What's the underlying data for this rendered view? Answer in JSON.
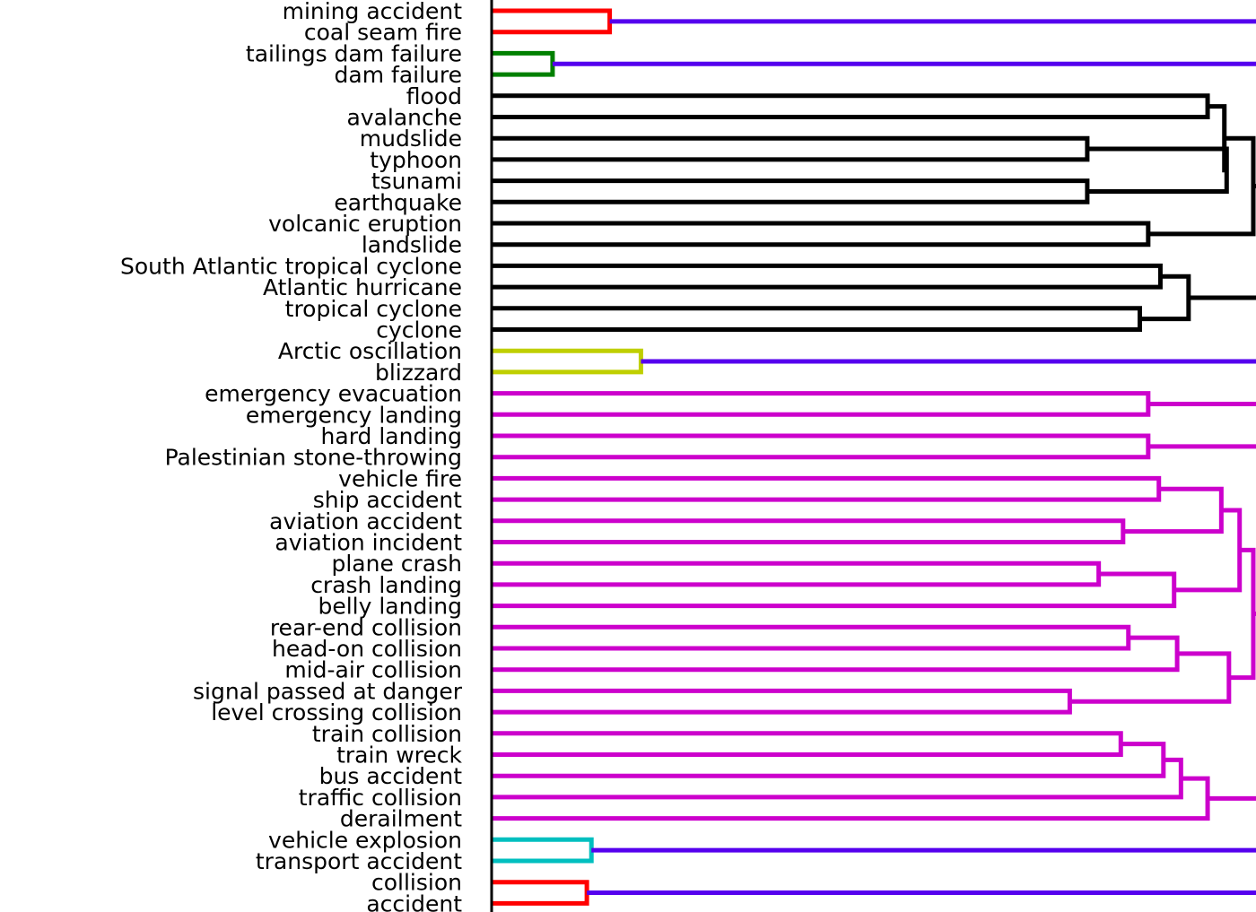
{
  "chart_data": {
    "type": "dendrogram",
    "orientation": "leaves-left",
    "colors": {
      "red": "#ff0000",
      "green": "#008000",
      "black": "#000000",
      "olive": "#bfcf00",
      "magenta": "#cc00cc",
      "cyan": "#00bfbf",
      "above_threshold": "#5500ee"
    },
    "leaves": [
      "mining accident",
      "coal seam fire",
      "tailings dam failure",
      "dam failure",
      "flood",
      "avalanche",
      "mudslide",
      "typhoon",
      "tsunami",
      "earthquake",
      "volcanic eruption",
      "landslide",
      "South Atlantic tropical cyclone",
      "Atlantic hurricane",
      "tropical cyclone",
      "cyclone",
      "Arctic oscillation",
      "blizzard",
      "emergency evacuation",
      "emergency landing",
      "hard landing",
      "Palestinian stone-throwing",
      "vehicle fire",
      "ship accident",
      "aviation accident",
      "aviation incident",
      "plane crash",
      "crash landing",
      "belly landing",
      "rear-end collision",
      "head-on collision",
      "mid-air collision",
      "signal passed at danger",
      "level crossing collision",
      "train collision",
      "train wreck",
      "bus accident",
      "traffic collision",
      "derailment",
      "vehicle explosion",
      "transport accident",
      "collision",
      "accident"
    ],
    "merges": [
      {
        "a": "L0",
        "b": "L1",
        "h": 0.155,
        "color": "red"
      },
      {
        "a": "L2",
        "b": "L3",
        "h": 0.08,
        "color": "green"
      },
      {
        "a": "L4",
        "b": "L5",
        "h": 0.94,
        "color": "black"
      },
      {
        "a": "L6",
        "b": "L7",
        "h": 0.782,
        "color": "black"
      },
      {
        "a": "L8",
        "b": "L9",
        "h": 0.782,
        "color": "black"
      },
      {
        "a": "M3",
        "b": "M4",
        "h": 0.965,
        "color": "black"
      },
      {
        "a": "M2",
        "b": "M5",
        "h": 0.962,
        "color": "black"
      },
      {
        "a": "L10",
        "b": "L11",
        "h": 0.862,
        "color": "black"
      },
      {
        "a": "M6",
        "b": "M7",
        "h": 1.0,
        "color": "black"
      },
      {
        "a": "L12",
        "b": "L13",
        "h": 0.878,
        "color": "black"
      },
      {
        "a": "L14",
        "b": "L15",
        "h": 0.851,
        "color": "black"
      },
      {
        "a": "M9",
        "b": "M10",
        "h": 0.915,
        "color": "black"
      },
      {
        "a": "L16",
        "b": "L17",
        "h": 0.196,
        "color": "olive"
      },
      {
        "a": "L18",
        "b": "L19",
        "h": 0.862,
        "color": "magenta"
      },
      {
        "a": "L20",
        "b": "L21",
        "h": 0.862,
        "color": "magenta"
      },
      {
        "a": "L22",
        "b": "L23",
        "h": 0.876,
        "color": "magenta"
      },
      {
        "a": "L24",
        "b": "L25",
        "h": 0.829,
        "color": "magenta"
      },
      {
        "a": "M15",
        "b": "M16",
        "h": 0.958,
        "color": "magenta"
      },
      {
        "a": "L26",
        "b": "L27",
        "h": 0.797,
        "color": "magenta"
      },
      {
        "a": "M18",
        "b": "L28",
        "h": 0.896,
        "color": "magenta"
      },
      {
        "a": "M17",
        "b": "M19",
        "h": 0.982,
        "color": "magenta"
      },
      {
        "a": "L29",
        "b": "L30",
        "h": 0.836,
        "color": "magenta"
      },
      {
        "a": "M21",
        "b": "L31",
        "h": 0.9,
        "color": "magenta"
      },
      {
        "a": "L32",
        "b": "L33",
        "h": 0.759,
        "color": "magenta"
      },
      {
        "a": "M22",
        "b": "M23",
        "h": 0.968,
        "color": "magenta"
      },
      {
        "a": "M20",
        "b": "M24",
        "h": 1.0,
        "color": "magenta"
      },
      {
        "a": "L34",
        "b": "L35",
        "h": 0.826,
        "color": "magenta"
      },
      {
        "a": "M26",
        "b": "L36",
        "h": 0.882,
        "color": "magenta"
      },
      {
        "a": "M27",
        "b": "L37",
        "h": 0.905,
        "color": "magenta"
      },
      {
        "a": "M28",
        "b": "L38",
        "h": 0.94,
        "color": "magenta"
      },
      {
        "a": "L39",
        "b": "L40",
        "h": 0.131,
        "color": "cyan"
      },
      {
        "a": "L41",
        "b": "L42",
        "h": 0.125,
        "color": "red"
      }
    ],
    "links_out": [
      {
        "from": "M0",
        "color": "above_threshold"
      },
      {
        "from": "M1",
        "color": "above_threshold"
      },
      {
        "from": "M8",
        "color": "black"
      },
      {
        "from": "M11",
        "color": "black"
      },
      {
        "from": "M12",
        "color": "above_threshold"
      },
      {
        "from": "M13",
        "color": "magenta"
      },
      {
        "from": "M14",
        "color": "magenta"
      },
      {
        "from": "M25",
        "color": "magenta"
      },
      {
        "from": "M29",
        "color": "magenta"
      },
      {
        "from": "M30",
        "color": "above_threshold"
      },
      {
        "from": "M31",
        "color": "above_threshold"
      }
    ]
  }
}
